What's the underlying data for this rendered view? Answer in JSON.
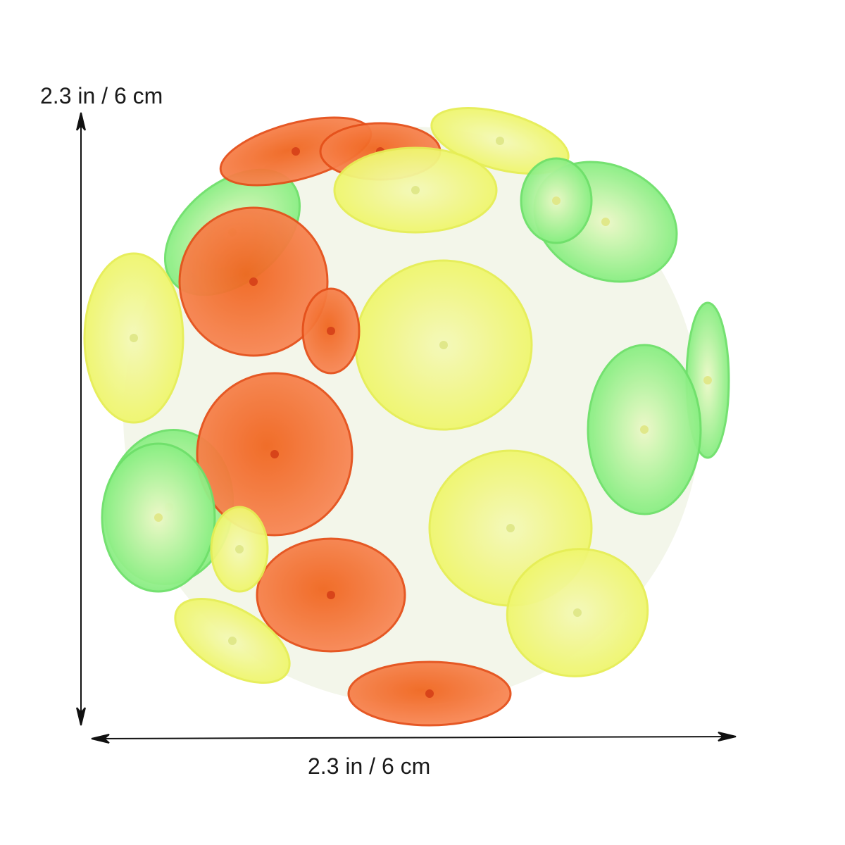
{
  "dimensions": {
    "height_label": "2.3 in / 6 cm",
    "width_label": "2.3 in / 6 cm"
  },
  "product": {
    "name_icon": "suction-cup-ball",
    "colors": {
      "orange": "#ec5a1e",
      "yellow": "#f2f56a",
      "green": "#8ef07a",
      "clear": "#eef3e6"
    }
  }
}
